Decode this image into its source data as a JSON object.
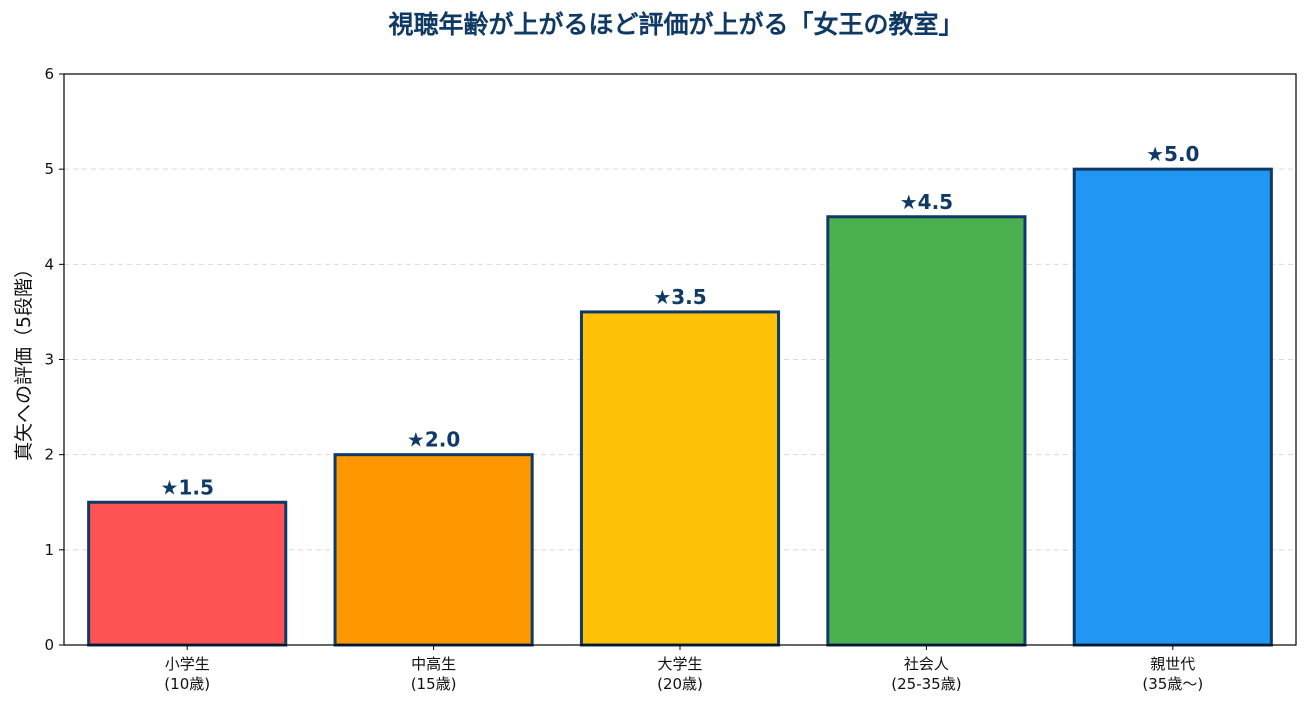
{
  "chart_data": {
    "type": "bar",
    "title": "視聴年齢が上がるほど評価が上がる「女王の教室」",
    "xlabel": "",
    "ylabel": "真矢への評価（5段階）",
    "ylim": [
      0,
      6
    ],
    "yticks": [
      0,
      1,
      2,
      3,
      4,
      5,
      6
    ],
    "grid": true,
    "categories": [
      [
        "小学生",
        "(10歳)"
      ],
      [
        "中高生",
        "(15歳)"
      ],
      [
        "大学生",
        "(20歳)"
      ],
      [
        "社会人",
        "(25-35歳)"
      ],
      [
        "親世代",
        "(35歳〜)"
      ]
    ],
    "values": [
      1.5,
      2.0,
      3.5,
      4.5,
      5.0
    ],
    "value_labels": [
      "★1.5",
      "★2.0",
      "★3.5",
      "★4.5",
      "★5.0"
    ],
    "bar_colors": [
      "#ff5252",
      "#ff9800",
      "#ffc107",
      "#4caf50",
      "#2196f3"
    ],
    "bar_edge_color": "#0f3a66",
    "title_color": "#0f3a66",
    "label_color": "#0f3a66"
  }
}
